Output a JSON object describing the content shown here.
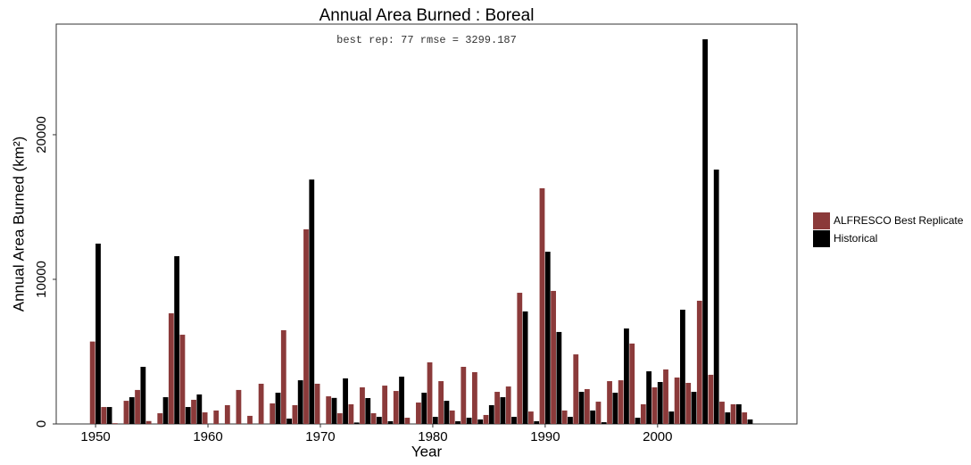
{
  "chart_data": {
    "type": "bar",
    "title": "Annual Area Burned : Boreal",
    "annotation": "best rep: 77 rmse = 3299.187",
    "x_label": "Year",
    "y_label": "Annual Area Burned (km²)",
    "x": [
      1950,
      1951,
      1952,
      1953,
      1954,
      1955,
      1956,
      1957,
      1958,
      1959,
      1960,
      1961,
      1962,
      1963,
      1964,
      1965,
      1966,
      1967,
      1968,
      1969,
      1970,
      1971,
      1972,
      1973,
      1974,
      1975,
      1976,
      1977,
      1978,
      1979,
      1980,
      1981,
      1982,
      1983,
      1984,
      1985,
      1986,
      1987,
      1988,
      1989,
      1990,
      1991,
      1992,
      1993,
      1994,
      1995,
      1996,
      1997,
      1998,
      1999,
      2000,
      2001,
      2002,
      2003,
      2004,
      2005,
      2006,
      2007,
      2008
    ],
    "series": [
      {
        "name": "ALFRESCO Best Replicate",
        "color": "#8b3a3a",
        "values": [
          5700,
          1170,
          50,
          1600,
          2350,
          200,
          740,
          7650,
          6170,
          1670,
          800,
          930,
          1300,
          2350,
          560,
          2780,
          1420,
          6480,
          1300,
          13460,
          2780,
          1910,
          740,
          1360,
          2530,
          740,
          2650,
          2280,
          430,
          1480,
          4260,
          2960,
          930,
          3950,
          3580,
          620,
          2220,
          2590,
          9070,
          860,
          16300,
          9200,
          930,
          4810,
          2410,
          1540,
          2960,
          3020,
          5560,
          1360,
          2530,
          3770,
          3210,
          2840,
          8520,
          3400,
          1540,
          1360,
          800
        ]
      },
      {
        "name": "Historical",
        "color": "#000000",
        "values": [
          12470,
          1170,
          0,
          1850,
          3950,
          0,
          1850,
          11600,
          1170,
          2040,
          0,
          0,
          0,
          0,
          0,
          0,
          2160,
          370,
          3020,
          16900,
          0,
          1800,
          3150,
          100,
          1790,
          490,
          190,
          3270,
          0,
          2160,
          490,
          1600,
          190,
          430,
          310,
          1300,
          1850,
          490,
          7780,
          190,
          11910,
          6360,
          490,
          2220,
          930,
          120,
          2160,
          6600,
          430,
          3640,
          2900,
          860,
          7900,
          2220,
          26600,
          17590,
          800,
          1360,
          310
        ]
      }
    ],
    "xlim": [
      1946.5,
      2012.4
    ],
    "xticks": [
      1950,
      1960,
      1970,
      1980,
      1990,
      2000
    ],
    "ylim": [
      0,
      27650
    ],
    "yticks": [
      0,
      10000,
      20000
    ],
    "grid": false,
    "legend": "right"
  }
}
